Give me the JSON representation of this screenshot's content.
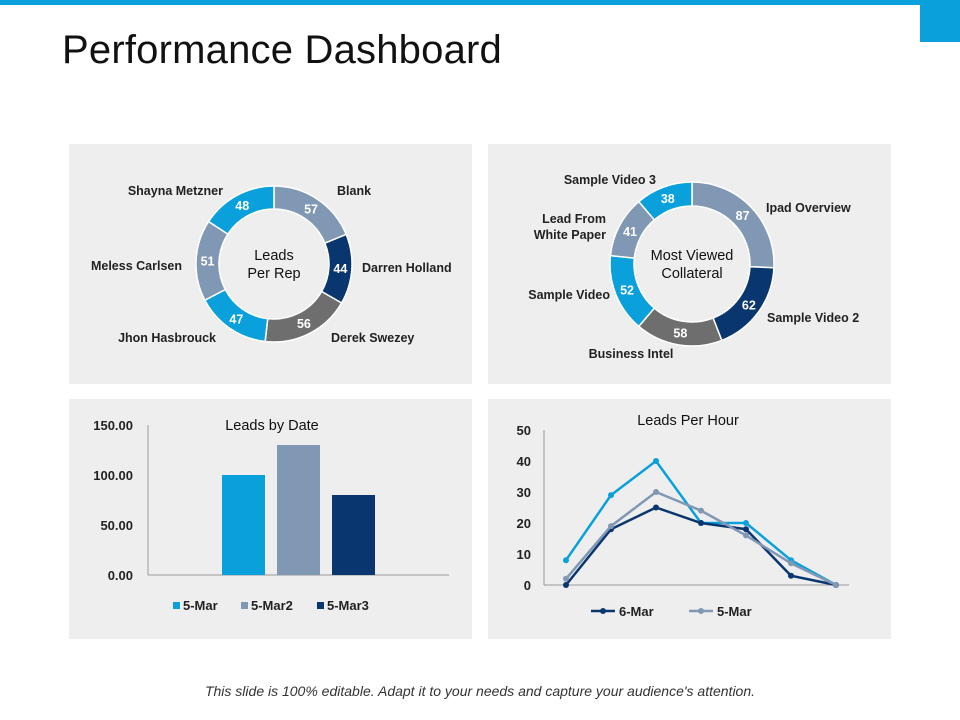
{
  "page": {
    "title": "Performance Dashboard"
  },
  "footer": {
    "text": "This slide is 100% editable. Adapt it to your needs and capture your audience's attention."
  },
  "colors": {
    "accent": "#0aa0dc",
    "panel_bg": "#eeeeee"
  },
  "chart_data": [
    {
      "type": "pie",
      "variant": "donut",
      "center_label": [
        "Leads",
        "Per Rep"
      ],
      "categories": [
        "Blank",
        "Darren Holland",
        "Derek Swezey",
        "Jhon Hasbrouck",
        "Meless Carlsen",
        "Shayna Metzner"
      ],
      "values": [
        57,
        44,
        56,
        47,
        51,
        48
      ],
      "colors": [
        "#8098b4",
        "#0a3670",
        "#6e6e6e",
        "#0aa0dc",
        "#8098b4",
        "#0aa0dc"
      ]
    },
    {
      "type": "pie",
      "variant": "donut",
      "center_label": [
        "Most Viewed",
        "Collateral"
      ],
      "categories": [
        "Ipad Overview",
        "Sample Video 2",
        "Business Intel",
        "Sample Video",
        "Lead From White Paper",
        "Sample Video 3"
      ],
      "category_lines": [
        [
          "Ipad Overview"
        ],
        [
          "Sample Video 2"
        ],
        [
          "Business Intel"
        ],
        [
          "Sample Video"
        ],
        [
          "Lead From",
          "White Paper"
        ],
        [
          "Sample Video 3"
        ]
      ],
      "values": [
        87,
        62,
        58,
        52,
        41,
        38
      ],
      "colors": [
        "#8098b4",
        "#0a3670",
        "#6e6e6e",
        "#0aa0dc",
        "#8098b4",
        "#0aa0dc"
      ]
    },
    {
      "type": "bar",
      "title": "Leads by Date",
      "series": [
        {
          "name": "5-Mar",
          "values": [
            100
          ],
          "color": "#0aa0dc"
        },
        {
          "name": "5-Mar2",
          "values": [
            130
          ],
          "color": "#8098b4"
        },
        {
          "name": "5-Mar3",
          "values": [
            80
          ],
          "color": "#0a3670"
        }
      ],
      "yticks": [
        "150.00",
        "100.00",
        "50.00",
        "0.00"
      ],
      "ylim": [
        0,
        150
      ],
      "legend": "bottom"
    },
    {
      "type": "line",
      "title": "Leads Per Hour",
      "x": [
        1,
        2,
        3,
        4,
        5,
        6,
        7
      ],
      "series": [
        {
          "name": "",
          "values": [
            8,
            29,
            40,
            20,
            20,
            8,
            0
          ],
          "color": "#0aa0dc"
        },
        {
          "name": "6-Mar",
          "values": [
            0,
            18,
            25,
            20,
            18,
            3,
            0
          ],
          "color": "#0a3670"
        },
        {
          "name": "5-Mar",
          "values": [
            2,
            19,
            30,
            24,
            16,
            7,
            0
          ],
          "color": "#8098b4"
        }
      ],
      "yticks": [
        "50",
        "40",
        "30",
        "20",
        "10",
        "0"
      ],
      "ylim": [
        0,
        50
      ],
      "legend": "bottom"
    }
  ]
}
